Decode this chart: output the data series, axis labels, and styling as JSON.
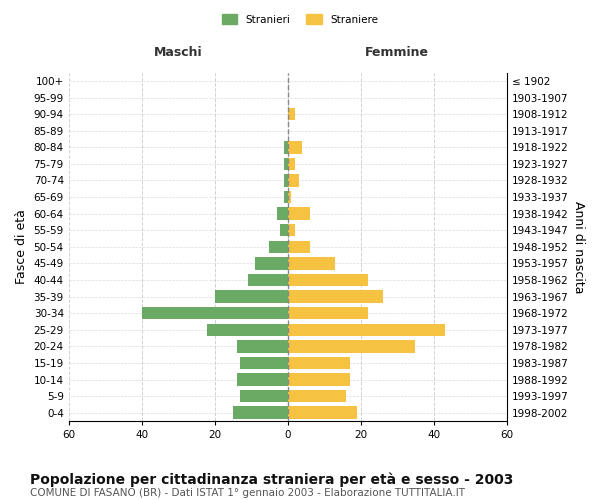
{
  "age_groups": [
    "0-4",
    "5-9",
    "10-14",
    "15-19",
    "20-24",
    "25-29",
    "30-34",
    "35-39",
    "40-44",
    "45-49",
    "50-54",
    "55-59",
    "60-64",
    "65-69",
    "70-74",
    "75-79",
    "80-84",
    "85-89",
    "90-94",
    "95-99",
    "100+"
  ],
  "birth_years": [
    "1998-2002",
    "1993-1997",
    "1988-1992",
    "1983-1987",
    "1978-1982",
    "1973-1977",
    "1968-1972",
    "1963-1967",
    "1958-1962",
    "1953-1957",
    "1948-1952",
    "1943-1947",
    "1938-1942",
    "1933-1937",
    "1928-1932",
    "1923-1927",
    "1918-1922",
    "1913-1917",
    "1908-1912",
    "1903-1907",
    "≤ 1902"
  ],
  "males": [
    15,
    13,
    14,
    13,
    14,
    22,
    40,
    20,
    11,
    9,
    5,
    2,
    3,
    1,
    1,
    1,
    1,
    0,
    0,
    0,
    0
  ],
  "females": [
    19,
    16,
    17,
    17,
    35,
    43,
    22,
    26,
    22,
    13,
    6,
    2,
    6,
    1,
    3,
    2,
    4,
    0,
    2,
    0,
    0
  ],
  "male_color": "#6aaa64",
  "female_color": "#f5c242",
  "background_color": "#ffffff",
  "grid_color": "#cccccc",
  "title": "Popolazione per cittadinanza straniera per età e sesso - 2003",
  "subtitle": "COMUNE DI FASANO (BR) - Dati ISTAT 1° gennaio 2003 - Elaborazione TUTTITALIA.IT",
  "xlabel_left": "Maschi",
  "xlabel_right": "Femmine",
  "ylabel_left": "Fasce di età",
  "ylabel_right": "Anni di nascita",
  "legend_stranieri": "Stranieri",
  "legend_straniere": "Straniere",
  "xlim": 60,
  "title_fontsize": 10,
  "subtitle_fontsize": 7.5,
  "label_fontsize": 9,
  "tick_fontsize": 7.5
}
